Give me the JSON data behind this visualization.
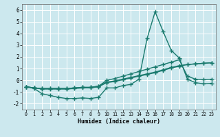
{
  "xlabel": "Humidex (Indice chaleur)",
  "xlim": [
    -0.5,
    23.5
  ],
  "ylim": [
    -2.5,
    6.5
  ],
  "xticks": [
    0,
    1,
    2,
    3,
    4,
    5,
    6,
    7,
    8,
    9,
    10,
    11,
    12,
    13,
    14,
    15,
    16,
    17,
    18,
    19,
    20,
    21,
    22,
    23
  ],
  "yticks": [
    -2,
    -1,
    0,
    1,
    2,
    3,
    4,
    5,
    6
  ],
  "background_color": "#cce8ee",
  "grid_color": "#ffffff",
  "line_color": "#1a7a6e",
  "line_width": 1.0,
  "marker": "+",
  "marker_size": 4.0,
  "series": [
    {
      "x": [
        0,
        1,
        2,
        3,
        4,
        5,
        6,
        7,
        8,
        9,
        10,
        11,
        12,
        13,
        14,
        15,
        16,
        17,
        18,
        19,
        20,
        21,
        22,
        23
      ],
      "y": [
        -0.55,
        -0.7,
        -1.15,
        -1.3,
        -1.45,
        -1.55,
        -1.55,
        -1.5,
        -1.55,
        -1.45,
        -0.65,
        -0.65,
        -0.45,
        -0.35,
        0.1,
        3.55,
        5.85,
        4.15,
        2.55,
        1.9,
        0.1,
        -0.2,
        -0.3,
        -0.25
      ]
    },
    {
      "x": [
        0,
        1,
        2,
        3,
        4,
        5,
        6,
        7,
        8,
        9,
        10,
        11,
        12,
        13,
        14,
        15,
        16,
        17,
        18,
        19,
        20,
        21,
        22,
        23
      ],
      "y": [
        -0.55,
        -0.65,
        -0.75,
        -0.75,
        -0.75,
        -0.75,
        -0.7,
        -0.65,
        -0.65,
        -0.55,
        -0.2,
        -0.1,
        0.05,
        0.2,
        0.35,
        0.5,
        0.65,
        0.85,
        1.05,
        1.2,
        1.35,
        1.4,
        1.45,
        1.5
      ]
    },
    {
      "x": [
        0,
        1,
        2,
        3,
        4,
        5,
        6,
        7,
        8,
        9,
        10,
        11,
        12,
        13,
        14,
        15,
        16,
        17,
        18,
        19,
        20,
        21,
        22,
        23
      ],
      "y": [
        -0.55,
        -0.65,
        -0.7,
        -0.7,
        -0.7,
        -0.7,
        -0.65,
        -0.6,
        -0.6,
        -0.5,
        -0.15,
        -0.05,
        0.1,
        0.25,
        0.4,
        0.55,
        0.7,
        0.9,
        1.1,
        1.25,
        1.35,
        1.4,
        1.45,
        1.5
      ]
    },
    {
      "x": [
        0,
        1,
        2,
        3,
        4,
        5,
        6,
        7,
        8,
        9,
        10,
        11,
        12,
        13,
        14,
        15,
        16,
        17,
        18,
        19,
        20,
        21,
        22,
        23
      ],
      "y": [
        -0.55,
        -0.65,
        -0.7,
        -0.7,
        -0.7,
        -0.7,
        -0.65,
        -0.6,
        -0.6,
        -0.5,
        0.0,
        0.15,
        0.35,
        0.55,
        0.75,
        0.95,
        1.15,
        1.35,
        1.55,
        1.75,
        0.35,
        0.1,
        0.05,
        0.1
      ]
    }
  ]
}
